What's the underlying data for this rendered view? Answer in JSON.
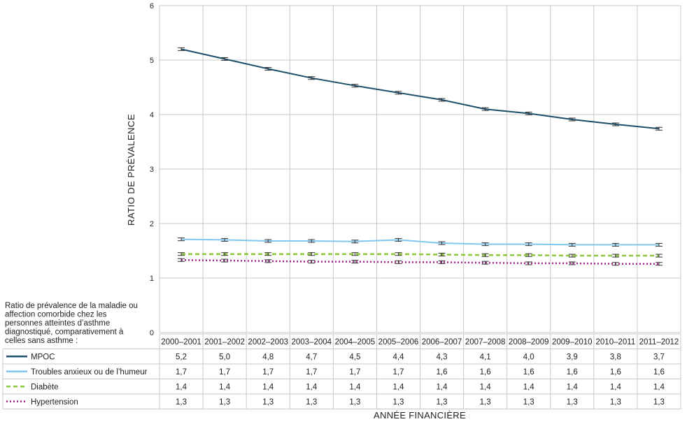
{
  "chart_data": {
    "type": "line",
    "ylabel": "RATIO DE PRÉVALENCE",
    "xlabel": "ANNÉE FINANCIÈRE",
    "ylim": [
      0,
      6
    ],
    "yticks": [
      "0",
      "1",
      "2",
      "3",
      "4",
      "5",
      "6"
    ],
    "grid": true,
    "categories": [
      "2000–2001",
      "2001–2002",
      "2002–2003",
      "2003–2004",
      "2004–2005",
      "2005–2006",
      "2006–2007",
      "2007–2008",
      "2008–2009",
      "2009–2010",
      "2010–2011",
      "2011–2012"
    ],
    "table_caption": "Ratio de prévalence de la maladie ou affection comorbide chez les personnes atteintes d’asthme diagnostiqué,  comparativement à celles sans asthme :",
    "series": [
      {
        "name": "MPOC",
        "color": "#1b4e6b",
        "style": "solid",
        "values": [
          5.2,
          5.02,
          4.84,
          4.67,
          4.53,
          4.4,
          4.27,
          4.1,
          4.02,
          3.91,
          3.82,
          3.74
        ],
        "labels": [
          "5,2",
          "5,0",
          "4,8",
          "4,7",
          "4,5",
          "4,4",
          "4,3",
          "4,1",
          "4,0",
          "3,9",
          "3,8",
          "3,7"
        ]
      },
      {
        "name": "Troubles anxieux ou de l’humeur",
        "color": "#7fc7ee",
        "style": "solid",
        "values": [
          1.71,
          1.7,
          1.68,
          1.68,
          1.67,
          1.7,
          1.64,
          1.62,
          1.62,
          1.61,
          1.61,
          1.61
        ],
        "labels": [
          "1,7",
          "1,7",
          "1,7",
          "1,7",
          "1,7",
          "1,7",
          "1,6",
          "1,6",
          "1,6",
          "1,6",
          "1,6",
          "1,6"
        ]
      },
      {
        "name": "Diabète",
        "color": "#8cc63f",
        "style": "dashed",
        "values": [
          1.44,
          1.44,
          1.44,
          1.44,
          1.44,
          1.44,
          1.43,
          1.42,
          1.42,
          1.41,
          1.41,
          1.41
        ],
        "labels": [
          "1,4",
          "1,4",
          "1,4",
          "1,4",
          "1,4",
          "1,4",
          "1,4",
          "1,4",
          "1,4",
          "1,4",
          "1,4",
          "1,4"
        ]
      },
      {
        "name": "Hypertension",
        "color": "#a3238e",
        "style": "dotted",
        "values": [
          1.33,
          1.32,
          1.31,
          1.3,
          1.3,
          1.29,
          1.29,
          1.28,
          1.27,
          1.27,
          1.26,
          1.26
        ],
        "labels": [
          "1,3",
          "1,3",
          "1,3",
          "1,3",
          "1,3",
          "1,3",
          "1,3",
          "1,3",
          "1,3",
          "1,3",
          "1,3",
          "1,3"
        ]
      }
    ]
  }
}
